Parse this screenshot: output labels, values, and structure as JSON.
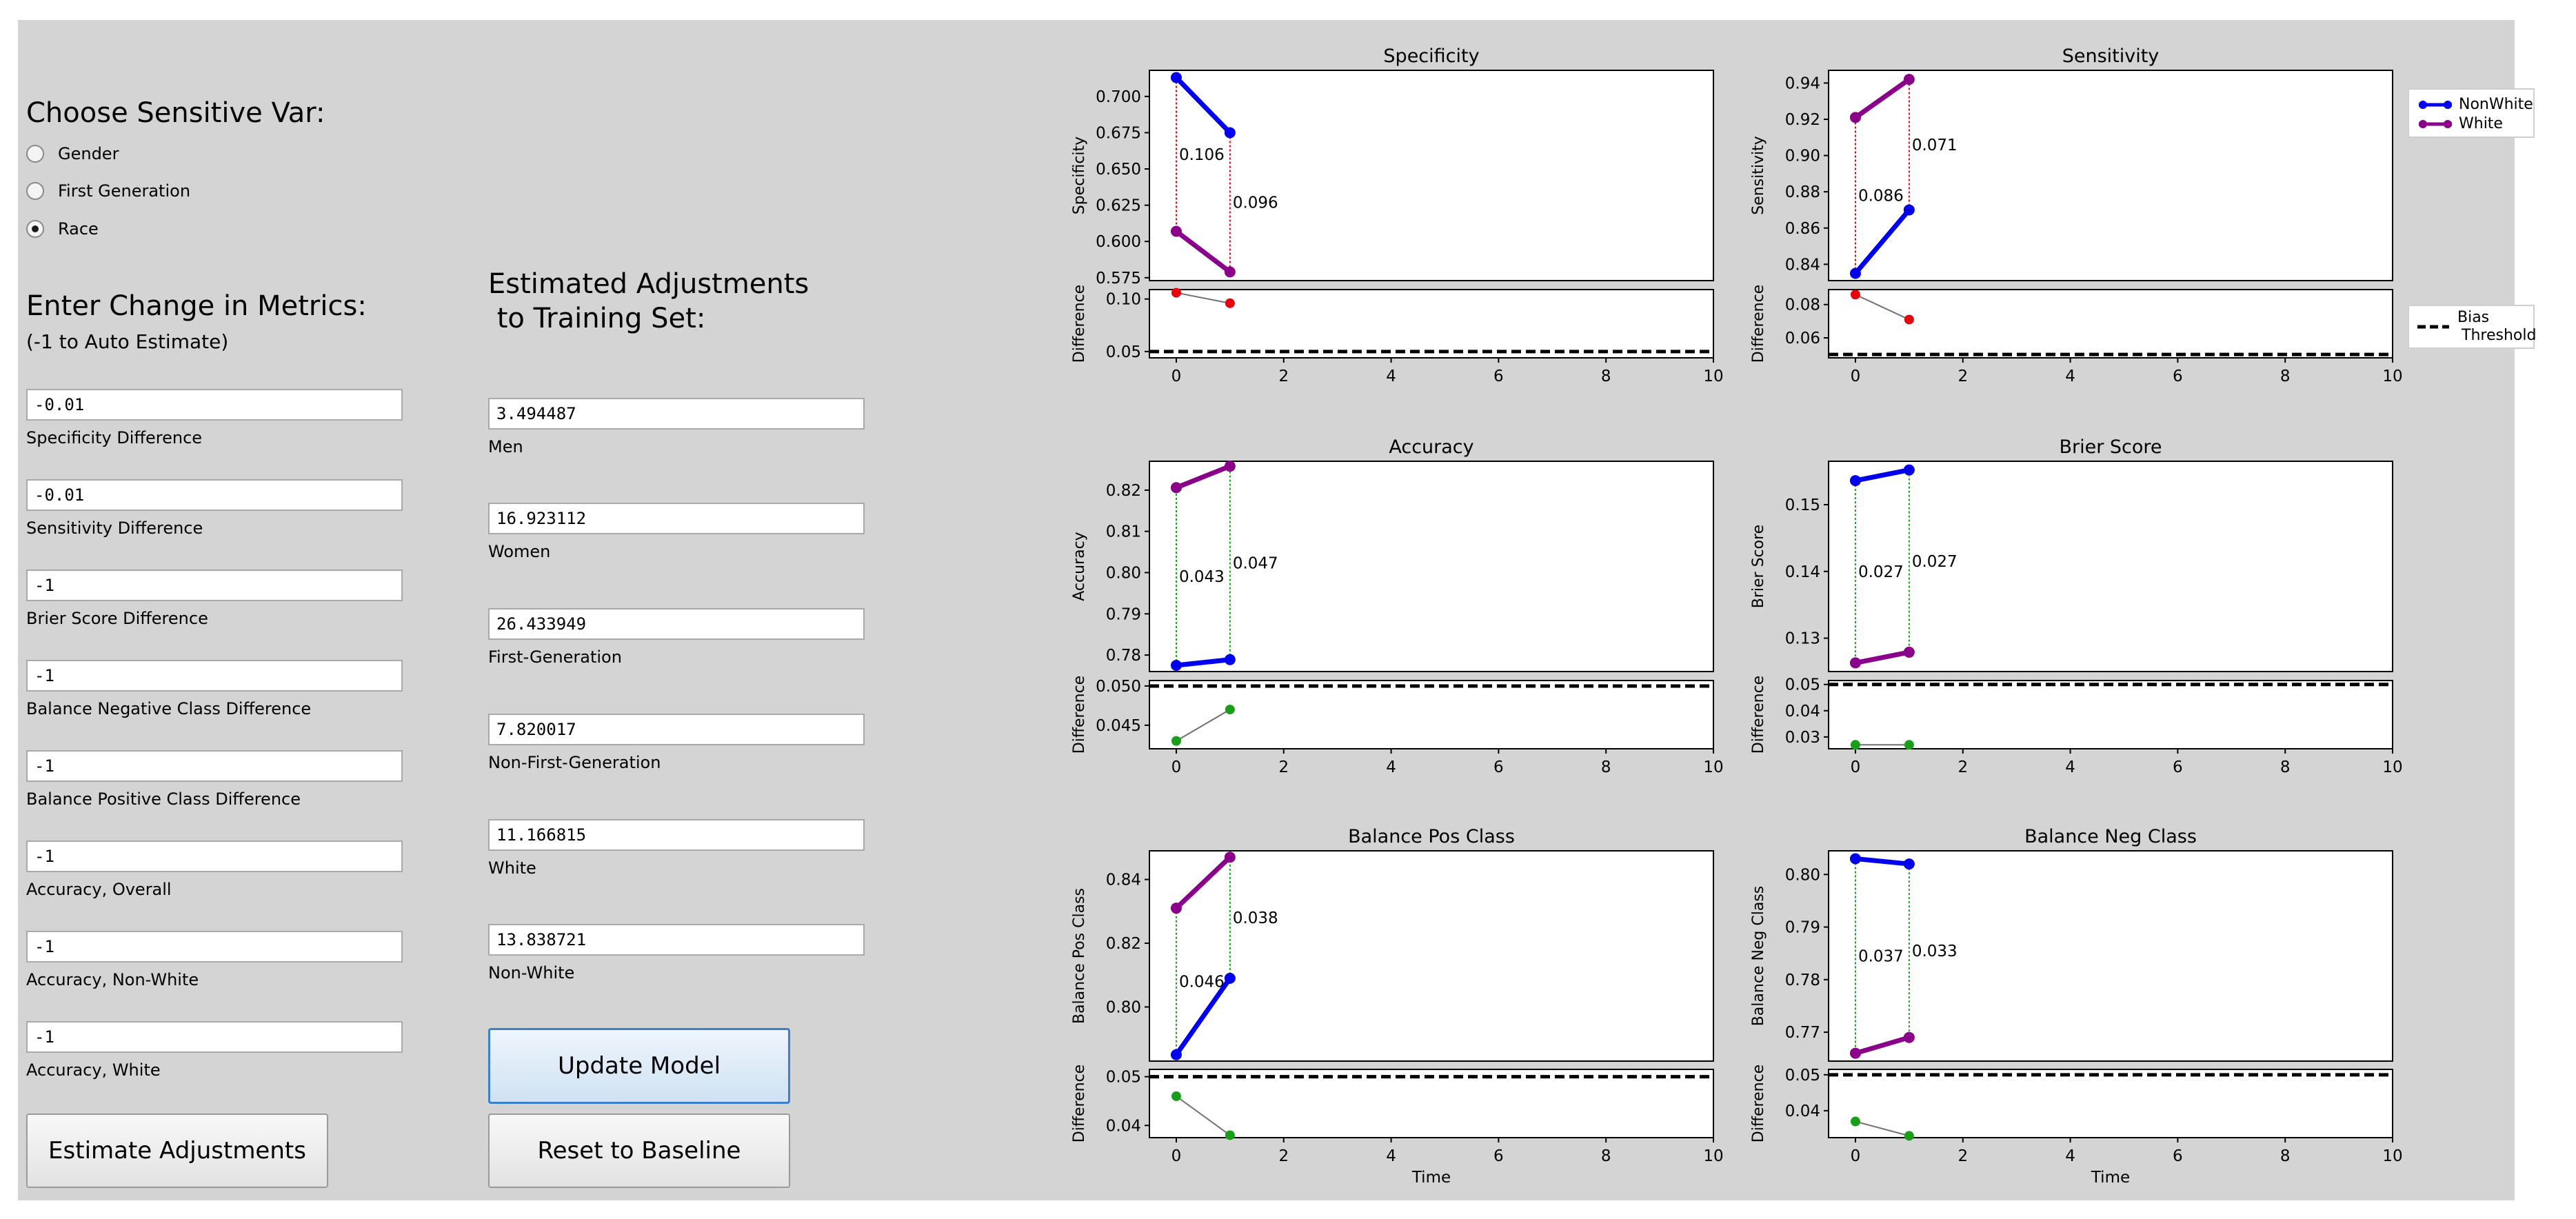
{
  "left": {
    "choose_title": "Choose Sensitive Var:",
    "radios": [
      {
        "label": "Gender",
        "selected": false
      },
      {
        "label": "First Generation",
        "selected": false
      },
      {
        "label": "Race",
        "selected": true
      }
    ],
    "metrics_title": "Enter Change in Metrics:",
    "metrics_note": "(-1 to Auto Estimate)",
    "fields": [
      {
        "value": "-0.01",
        "label": "Specificity Difference"
      },
      {
        "value": "-0.01",
        "label": "Sensitivity Difference"
      },
      {
        "value": "-1",
        "label": "Brier Score Difference"
      },
      {
        "value": "-1",
        "label": "Balance Negative Class Difference"
      },
      {
        "value": "-1",
        "label": "Balance Positive Class Difference"
      },
      {
        "value": "-1",
        "label": "Accuracy, Overall"
      },
      {
        "value": "-1",
        "label": "Accuracy, Non-White"
      },
      {
        "value": "-1",
        "label": "Accuracy, White"
      }
    ],
    "estimate_button": "Estimate Adjustments"
  },
  "middle": {
    "title_line1": "Estimated Adjustments",
    "title_line2": " to Training Set:",
    "fields": [
      {
        "value": "3.494487",
        "label": "Men"
      },
      {
        "value": "16.923112",
        "label": "Women"
      },
      {
        "value": "26.433949",
        "label": "First-Generation"
      },
      {
        "value": "7.820017",
        "label": "Non-First-Generation"
      },
      {
        "value": "11.166815",
        "label": "White"
      },
      {
        "value": "13.838721",
        "label": "Non-White"
      }
    ],
    "update_button": "Update Model",
    "reset_button": "Reset to Baseline"
  },
  "legend": {
    "series": [
      {
        "name": "NonWhite",
        "color": "#0000ee"
      },
      {
        "name": "White",
        "color": "#8b008b"
      }
    ],
    "threshold_line1": "Bias",
    "threshold_line2": "Threshold"
  },
  "chart_data": [
    {
      "type": "line",
      "title": "Specificity",
      "ylabel": "Specificity",
      "diff_ylabel": "Difference",
      "xlabel": "",
      "x": [
        0,
        1
      ],
      "series": [
        {
          "name": "NonWhite",
          "color": "#0000ee",
          "values": [
            0.713,
            0.675
          ]
        },
        {
          "name": "White",
          "color": "#8b008b",
          "values": [
            0.607,
            0.579
          ]
        }
      ],
      "ylim": [
        0.573,
        0.718
      ],
      "yticks": [
        0.575,
        0.6,
        0.625,
        0.65,
        0.675,
        0.7
      ],
      "ytick_labels": [
        "0.575",
        "0.600",
        "0.625",
        "0.650",
        "0.675",
        "0.700"
      ],
      "gap_color": "#e8000b",
      "gap_labels": [
        "0.106",
        "0.096"
      ],
      "difference": [
        0.106,
        0.096
      ],
      "diff_ylim": [
        0.044,
        0.109
      ],
      "diff_yticks": [
        0.05,
        0.1
      ],
      "diff_ytick_labels": [
        "0.05",
        "0.10"
      ],
      "threshold": 0.05,
      "xlim": [
        -0.5,
        10
      ],
      "xticks": [
        0,
        2,
        4,
        6,
        8,
        10
      ]
    },
    {
      "type": "line",
      "title": "Sensitivity",
      "ylabel": "Sensitivity",
      "diff_ylabel": "Difference",
      "xlabel": "",
      "x": [
        0,
        1
      ],
      "series": [
        {
          "name": "NonWhite",
          "color": "#0000ee",
          "values": [
            0.835,
            0.87
          ]
        },
        {
          "name": "White",
          "color": "#8b008b",
          "values": [
            0.921,
            0.942
          ]
        }
      ],
      "ylim": [
        0.831,
        0.947
      ],
      "yticks": [
        0.84,
        0.86,
        0.88,
        0.9,
        0.92,
        0.94
      ],
      "ytick_labels": [
        "0.84",
        "0.86",
        "0.88",
        "0.90",
        "0.92",
        "0.94"
      ],
      "gap_color": "#e8000b",
      "gap_labels": [
        "0.086",
        "0.071"
      ],
      "difference": [
        0.086,
        0.071
      ],
      "diff_ylim": [
        0.048,
        0.089
      ],
      "diff_yticks": [
        0.06,
        0.08
      ],
      "diff_ytick_labels": [
        "0.06",
        "0.08"
      ],
      "threshold": 0.05,
      "xlim": [
        -0.5,
        10
      ],
      "xticks": [
        0,
        2,
        4,
        6,
        8,
        10
      ]
    },
    {
      "type": "line",
      "title": "Accuracy",
      "ylabel": "Accuracy",
      "diff_ylabel": "Difference",
      "xlabel": "",
      "x": [
        0,
        1
      ],
      "series": [
        {
          "name": "NonWhite",
          "color": "#0000ee",
          "values": [
            0.7775,
            0.7789
          ]
        },
        {
          "name": "White",
          "color": "#8b008b",
          "values": [
            0.8206,
            0.8258
          ]
        }
      ],
      "ylim": [
        0.776,
        0.827
      ],
      "yticks": [
        0.78,
        0.79,
        0.8,
        0.81,
        0.82
      ],
      "ytick_labels": [
        "0.78",
        "0.79",
        "0.80",
        "0.81",
        "0.82"
      ],
      "gap_color": "#1a9e1a",
      "gap_labels": [
        "0.043",
        "0.047"
      ],
      "difference": [
        0.043,
        0.047
      ],
      "diff_ylim": [
        0.042,
        0.0507
      ],
      "diff_yticks": [
        0.045,
        0.05
      ],
      "diff_ytick_labels": [
        "0.045",
        "0.050"
      ],
      "threshold": 0.05,
      "xlim": [
        -0.5,
        10
      ],
      "xticks": [
        0,
        2,
        4,
        6,
        8,
        10
      ]
    },
    {
      "type": "line",
      "title": "Brier Score",
      "ylabel": "Brier Score",
      "diff_ylabel": "Difference",
      "xlabel": "",
      "x": [
        0,
        1
      ],
      "series": [
        {
          "name": "NonWhite",
          "color": "#0000ee",
          "values": [
            0.1536,
            0.1552
          ]
        },
        {
          "name": "White",
          "color": "#8b008b",
          "values": [
            0.1263,
            0.1279
          ]
        }
      ],
      "ylim": [
        0.125,
        0.1565
      ],
      "yticks": [
        0.13,
        0.14,
        0.15
      ],
      "ytick_labels": [
        "0.13",
        "0.14",
        "0.15"
      ],
      "gap_color": "#1a9e1a",
      "gap_labels": [
        "0.027",
        "0.027"
      ],
      "difference": [
        0.027,
        0.027
      ],
      "diff_ylim": [
        0.0255,
        0.0515
      ],
      "diff_yticks": [
        0.03,
        0.04,
        0.05
      ],
      "diff_ytick_labels": [
        "0.03",
        "0.04",
        "0.05"
      ],
      "threshold": 0.05,
      "xlim": [
        -0.5,
        10
      ],
      "xticks": [
        0,
        2,
        4,
        6,
        8,
        10
      ]
    },
    {
      "type": "line",
      "title": "Balance Pos Class",
      "ylabel": "Balance Pos Class",
      "diff_ylabel": "Difference",
      "xlabel": "Time",
      "x": [
        0,
        1
      ],
      "series": [
        {
          "name": "NonWhite",
          "color": "#0000ee",
          "values": [
            0.785,
            0.809
          ]
        },
        {
          "name": "White",
          "color": "#8b008b",
          "values": [
            0.831,
            0.847
          ]
        }
      ],
      "ylim": [
        0.783,
        0.849
      ],
      "yticks": [
        0.8,
        0.82,
        0.84
      ],
      "ytick_labels": [
        "0.80",
        "0.82",
        "0.84"
      ],
      "gap_color": "#1a9e1a",
      "gap_labels": [
        "0.046",
        "0.038"
      ],
      "difference": [
        0.046,
        0.038
      ],
      "diff_ylim": [
        0.0375,
        0.0515
      ],
      "diff_yticks": [
        0.04,
        0.05
      ],
      "diff_ytick_labels": [
        "0.04",
        "0.05"
      ],
      "threshold": 0.05,
      "xlim": [
        -0.5,
        10
      ],
      "xticks": [
        0,
        2,
        4,
        6,
        8,
        10
      ]
    },
    {
      "type": "line",
      "title": "Balance Neg Class",
      "ylabel": "Balance Neg Class",
      "diff_ylabel": "Difference",
      "xlabel": "Time",
      "x": [
        0,
        1
      ],
      "series": [
        {
          "name": "NonWhite",
          "color": "#0000ee",
          "values": [
            0.803,
            0.802
          ]
        },
        {
          "name": "White",
          "color": "#8b008b",
          "values": [
            0.766,
            0.769
          ]
        }
      ],
      "ylim": [
        0.7645,
        0.8045
      ],
      "yticks": [
        0.77,
        0.78,
        0.79,
        0.8
      ],
      "ytick_labels": [
        "0.77",
        "0.78",
        "0.79",
        "0.80"
      ],
      "gap_color": "#1a9e1a",
      "gap_labels": [
        "0.037",
        "0.033"
      ],
      "difference": [
        0.037,
        0.033
      ],
      "diff_ylim": [
        0.0325,
        0.0515
      ],
      "diff_yticks": [
        0.04,
        0.05
      ],
      "diff_ytick_labels": [
        "0.04",
        "0.05"
      ],
      "threshold": 0.05,
      "xlim": [
        -0.5,
        10
      ],
      "xticks": [
        0,
        2,
        4,
        6,
        8,
        10
      ]
    }
  ]
}
